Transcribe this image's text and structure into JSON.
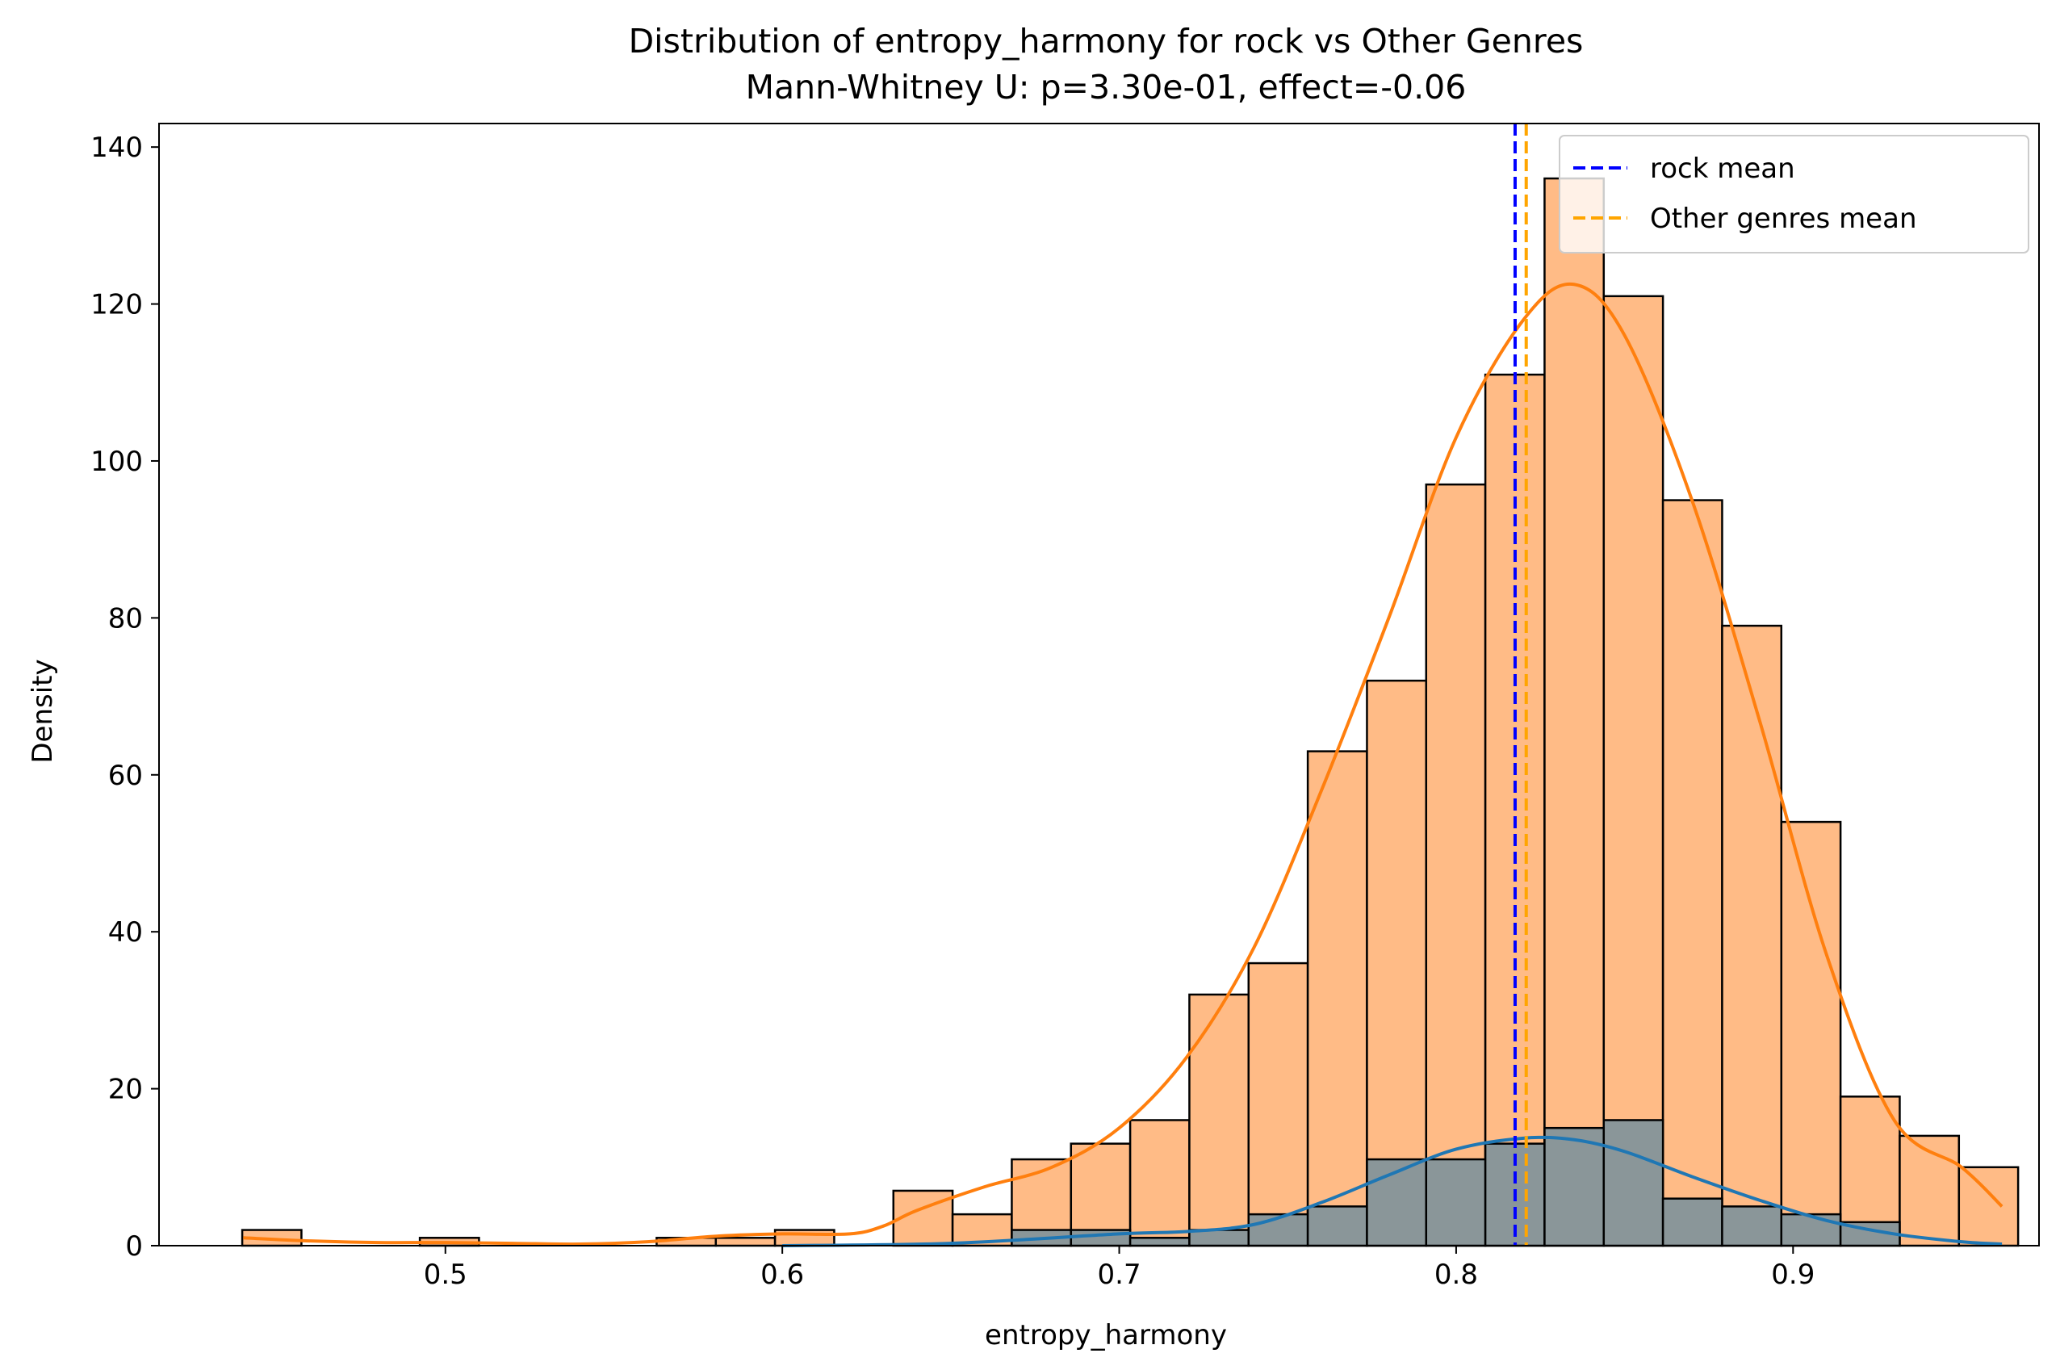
{
  "chart_data": {
    "type": "histogram",
    "title": "Distribution of entropy_harmony for rock vs Other Genres",
    "subtitle": "Mann-Whitney U: p=3.30e-01, effect=-0.06",
    "xlabel": "entropy_harmony",
    "ylabel": "Density",
    "xlim": [
      0.415,
      0.973
    ],
    "ylim": [
      0,
      143
    ],
    "xticks": [
      0.5,
      0.6,
      0.7,
      0.8,
      0.9
    ],
    "xtick_labels": [
      "0.5",
      "0.6",
      "0.7",
      "0.8",
      "0.9"
    ],
    "yticks": [
      0,
      20,
      40,
      60,
      80,
      100,
      120,
      140
    ],
    "ytick_labels": [
      "0",
      "20",
      "40",
      "60",
      "80",
      "100",
      "120",
      "140"
    ],
    "bin_start": 0.4397,
    "bin_width": 0.01757,
    "grid": false,
    "legend_position": "top-right",
    "series": [
      {
        "name": "Other genres",
        "color": "#ff7f0e",
        "fill": "#ffbb86",
        "values": [
          2,
          0,
          0,
          1,
          0,
          0,
          0,
          1,
          1,
          2,
          0,
          7,
          4,
          11,
          13,
          16,
          32,
          36,
          63,
          72,
          97,
          111,
          136,
          121,
          95,
          79,
          54,
          19,
          14,
          10
        ]
      },
      {
        "name": "rock",
        "color": "#1f77b4",
        "fill": "#8a9699",
        "values": [
          0,
          0,
          0,
          0,
          0,
          0,
          0,
          0,
          0,
          0,
          0,
          0,
          0,
          2,
          2,
          1,
          2,
          4,
          5,
          11,
          11,
          13,
          15,
          16,
          6,
          5,
          4,
          3,
          0,
          0
        ]
      }
    ],
    "kde": [
      {
        "series": "Other genres",
        "color": "#ff7f0e",
        "points": [
          [
            0.44,
            1.0
          ],
          [
            0.46,
            0.6
          ],
          [
            0.48,
            0.4
          ],
          [
            0.5,
            0.4
          ],
          [
            0.52,
            0.3
          ],
          [
            0.54,
            0.2
          ],
          [
            0.56,
            0.5
          ],
          [
            0.58,
            1.2
          ],
          [
            0.6,
            1.5
          ],
          [
            0.62,
            1.5
          ],
          [
            0.63,
            2.5
          ],
          [
            0.64,
            4.5
          ],
          [
            0.66,
            7.5
          ],
          [
            0.68,
            10
          ],
          [
            0.7,
            15
          ],
          [
            0.72,
            24
          ],
          [
            0.74,
            38
          ],
          [
            0.76,
            58
          ],
          [
            0.78,
            80
          ],
          [
            0.8,
            103
          ],
          [
            0.82,
            118
          ],
          [
            0.835,
            122.5
          ],
          [
            0.85,
            116
          ],
          [
            0.87,
            95
          ],
          [
            0.89,
            67
          ],
          [
            0.91,
            37
          ],
          [
            0.93,
            16
          ],
          [
            0.95,
            10
          ],
          [
            0.962,
            5
          ]
        ]
      },
      {
        "series": "rock",
        "color": "#1f77b4",
        "points": [
          [
            0.6,
            0
          ],
          [
            0.65,
            0.3
          ],
          [
            0.7,
            1.5
          ],
          [
            0.72,
            1.8
          ],
          [
            0.74,
            2.7
          ],
          [
            0.76,
            5.5
          ],
          [
            0.78,
            9
          ],
          [
            0.8,
            12.3
          ],
          [
            0.82,
            13.7
          ],
          [
            0.835,
            13.5
          ],
          [
            0.85,
            12
          ],
          [
            0.87,
            8.8
          ],
          [
            0.89,
            5.8
          ],
          [
            0.91,
            3.2
          ],
          [
            0.93,
            1.5
          ],
          [
            0.95,
            0.5
          ],
          [
            0.962,
            0.2
          ]
        ]
      }
    ],
    "mean_lines": [
      {
        "label": "rock mean",
        "value": 0.8175,
        "color": "#0000ff"
      },
      {
        "label": "Other genres mean",
        "value": 0.8208,
        "color": "#ffa500"
      }
    ]
  }
}
